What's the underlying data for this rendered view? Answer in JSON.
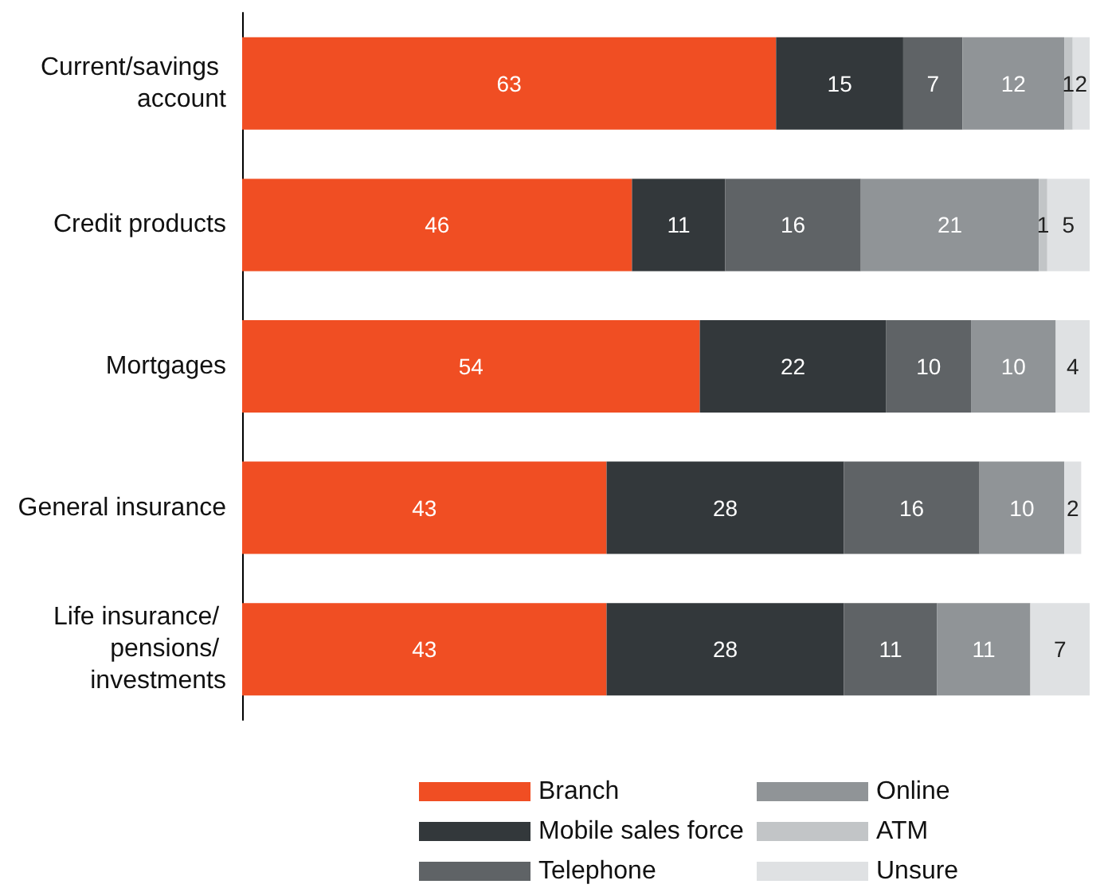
{
  "chart_data": {
    "type": "bar",
    "orientation": "horizontal",
    "stacked": true,
    "data_labels": true,
    "legend": "bottom",
    "grid": false,
    "tick_labels": "y",
    "xlim": [
      0,
      100
    ],
    "categories": [
      "Current/savings account",
      "Credit products",
      "Mortgages",
      "General insurance",
      "Life insurance/ pensions/ investments"
    ],
    "series": [
      {
        "name": "Branch",
        "color": "#f04e23",
        "values": [
          63,
          46,
          54,
          43,
          43
        ]
      },
      {
        "name": "Mobile sales force",
        "color": "#33383b",
        "values": [
          15,
          11,
          22,
          28,
          28
        ]
      },
      {
        "name": "Telephone",
        "color": "#5f6366",
        "values": [
          7,
          16,
          10,
          16,
          11
        ]
      },
      {
        "name": "Online",
        "color": "#909497",
        "values": [
          12,
          21,
          10,
          10,
          11
        ]
      },
      {
        "name": "ATM",
        "color": "#c2c5c7",
        "values": [
          1,
          1,
          null,
          null,
          null
        ]
      },
      {
        "name": "Unsure",
        "color": "#dfe1e3",
        "values": [
          2,
          5,
          4,
          2,
          7
        ]
      }
    ]
  }
}
